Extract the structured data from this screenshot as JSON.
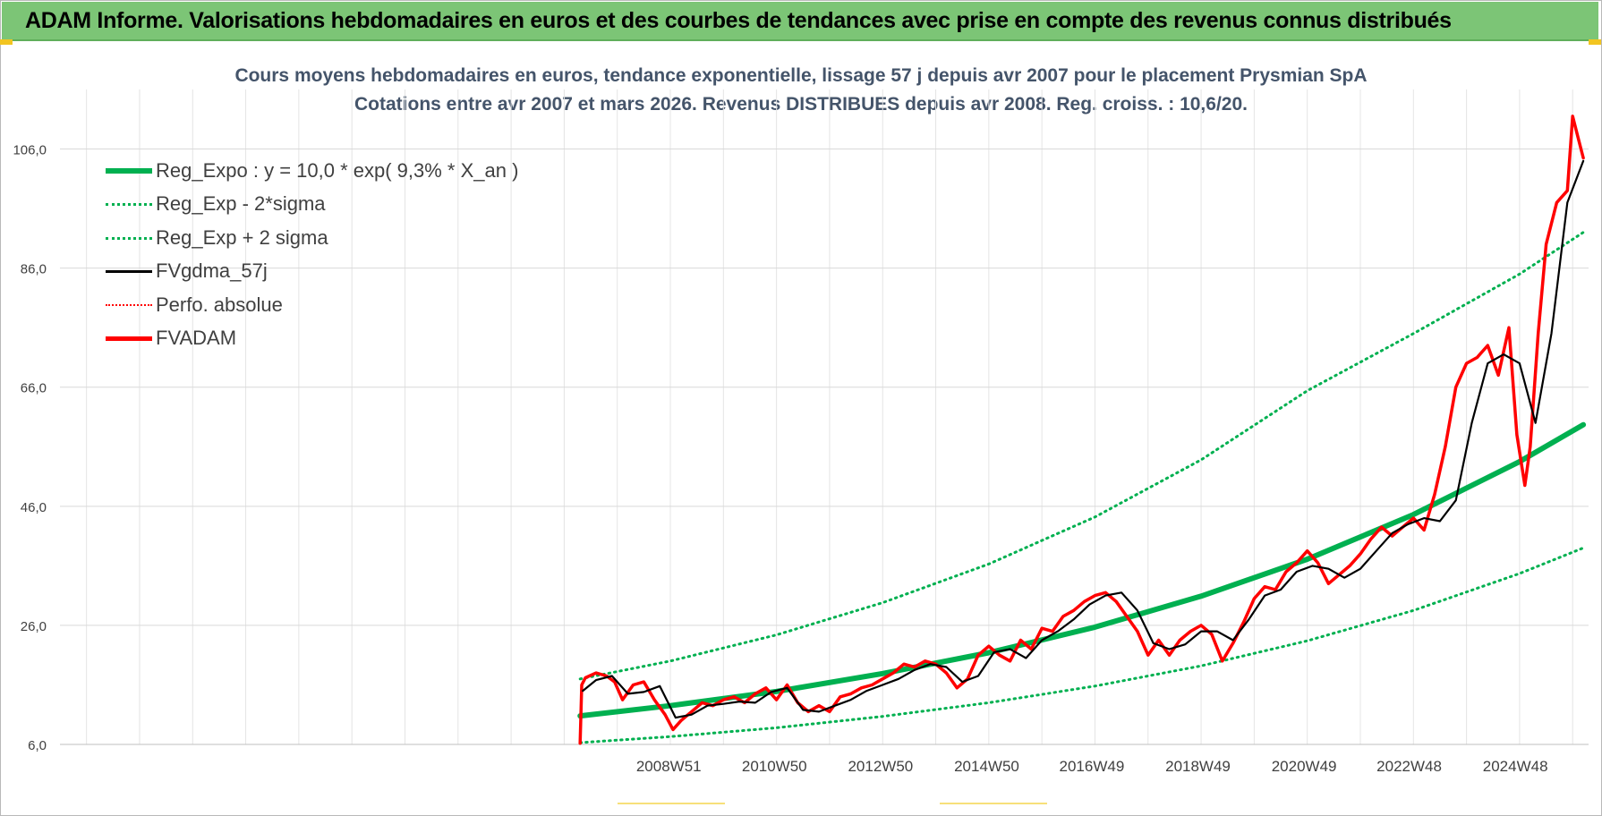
{
  "banner": {
    "title": "ADAM Informe. Valorisations hebdomadaires en euros et des courbes de tendances avec prise en compte des revenus connus distribués"
  },
  "chart_data": {
    "type": "line",
    "title": "Cours moyens hebdomadaires en euros, tendance exponentielle, lissage 57 j depuis avr 2007 pour le placement Prysmian SpA",
    "subtitle": "Cotations entre avr 2007 et mars 2026. Revenus DISTRIBUES depuis avr 2008. Reg. croiss. : 10,6/20.",
    "xlabel": "",
    "ylabel": "",
    "ylim": [
      6,
      116
    ],
    "yticks": [
      "6,0",
      "26,0",
      "46,0",
      "66,0",
      "86,0",
      "106,0"
    ],
    "ytick_values": [
      6,
      26,
      46,
      66,
      86,
      106
    ],
    "xlim": [
      1997.5,
      2026.3
    ],
    "xticks": [
      "2008W51",
      "2010W50",
      "2012W50",
      "2014W50",
      "2016W49",
      "2018W49",
      "2020W49",
      "2022W48",
      "2024W48"
    ],
    "xtick_positions": [
      2008.97,
      2010.96,
      2012.96,
      2014.96,
      2016.94,
      2018.94,
      2020.94,
      2022.92,
      2024.92
    ],
    "grid": true,
    "legend_position": "top-left",
    "series": [
      {
        "name": "Reg_Expo : y = 10,0 * exp( 9,3% *  X_an )",
        "style": "solid-thick",
        "color": "#00b050",
        "x": [
          2007.3,
          2009,
          2011,
          2013,
          2015,
          2017,
          2019,
          2021,
          2023,
          2025,
          2026.2
        ],
        "y": [
          10.8,
          12.5,
          14.9,
          17.9,
          21.4,
          25.7,
          30.9,
          37.1,
          44.6,
          53.5,
          59.7
        ]
      },
      {
        "name": "Reg_Exp - 2*sigma",
        "style": "dotted",
        "color": "#00b050",
        "x": [
          2007.3,
          2009,
          2011,
          2013,
          2015,
          2017,
          2019,
          2021,
          2023,
          2025,
          2026.2
        ],
        "y": [
          6.3,
          7.3,
          8.8,
          10.7,
          13.0,
          15.8,
          19.2,
          23.4,
          28.5,
          34.7,
          39.0
        ]
      },
      {
        "name": "Reg_Exp + 2 sigma",
        "style": "dotted",
        "color": "#00b050",
        "x": [
          2007.3,
          2009,
          2011,
          2013,
          2015,
          2017,
          2019,
          2021,
          2023,
          2025,
          2026.2
        ],
        "y": [
          17.0,
          20.0,
          24.4,
          29.8,
          36.3,
          44.2,
          53.8,
          65.4,
          75.0,
          85.0,
          92.0
        ]
      },
      {
        "name": "FVgdma_57j",
        "style": "solid",
        "color": "#000000",
        "x": [
          2007.35,
          2007.6,
          2007.9,
          2008.2,
          2008.5,
          2008.8,
          2009.1,
          2009.4,
          2009.7,
          2010.0,
          2010.3,
          2010.6,
          2010.9,
          2011.2,
          2011.5,
          2011.8,
          2012.1,
          2012.4,
          2012.7,
          2013.0,
          2013.3,
          2013.6,
          2013.9,
          2014.2,
          2014.5,
          2014.8,
          2015.1,
          2015.4,
          2015.7,
          2016.0,
          2016.3,
          2016.6,
          2016.9,
          2017.2,
          2017.5,
          2017.8,
          2018.1,
          2018.4,
          2018.7,
          2019.0,
          2019.3,
          2019.6,
          2019.9,
          2020.2,
          2020.5,
          2020.8,
          2021.1,
          2021.4,
          2021.7,
          2022.0,
          2022.3,
          2022.6,
          2022.9,
          2023.2,
          2023.5,
          2023.8,
          2024.1,
          2024.4,
          2024.7,
          2025.0,
          2025.3,
          2025.6,
          2025.9,
          2026.2
        ],
        "y": [
          15.0,
          16.8,
          17.5,
          14.5,
          14.8,
          15.8,
          10.5,
          11.0,
          12.5,
          12.8,
          13.2,
          13.0,
          14.8,
          15.5,
          11.8,
          11.5,
          12.5,
          13.5,
          15.0,
          16.0,
          17.0,
          18.5,
          19.5,
          19.0,
          16.5,
          17.5,
          21.5,
          22.0,
          20.5,
          23.5,
          25.0,
          27.0,
          29.5,
          31.0,
          31.5,
          28.5,
          23.0,
          22.0,
          22.8,
          25.0,
          25.0,
          23.5,
          27.0,
          31.0,
          32.0,
          35.0,
          36.0,
          35.5,
          34.0,
          35.5,
          38.5,
          41.5,
          43.0,
          44.0,
          43.5,
          47.0,
          60.0,
          70.0,
          71.5,
          70.0,
          60.0,
          75.0,
          97.0,
          104.0
        ]
      },
      {
        "name": "Perfo. absolue",
        "style": "dotted",
        "color": "#ff0000",
        "x": [],
        "y": []
      },
      {
        "name": "FVADAM",
        "style": "solid-thick",
        "color": "#ff0000",
        "x": [
          2007.3,
          2007.33,
          2007.4,
          2007.6,
          2007.8,
          2007.95,
          2008.1,
          2008.3,
          2008.5,
          2008.7,
          2008.9,
          2009.05,
          2009.2,
          2009.4,
          2009.6,
          2009.8,
          2010.0,
          2010.2,
          2010.4,
          2010.6,
          2010.8,
          2011.0,
          2011.2,
          2011.4,
          2011.6,
          2011.8,
          2012.0,
          2012.2,
          2012.4,
          2012.6,
          2012.8,
          2013.0,
          2013.2,
          2013.4,
          2013.6,
          2013.8,
          2014.0,
          2014.2,
          2014.4,
          2014.6,
          2014.8,
          2015.0,
          2015.2,
          2015.4,
          2015.6,
          2015.8,
          2016.0,
          2016.2,
          2016.4,
          2016.6,
          2016.8,
          2017.0,
          2017.2,
          2017.4,
          2017.6,
          2017.8,
          2018.0,
          2018.2,
          2018.4,
          2018.6,
          2018.8,
          2019.0,
          2019.2,
          2019.4,
          2019.6,
          2019.8,
          2020.0,
          2020.2,
          2020.4,
          2020.6,
          2020.8,
          2021.0,
          2021.2,
          2021.4,
          2021.6,
          2021.8,
          2022.0,
          2022.2,
          2022.4,
          2022.6,
          2022.8,
          2023.0,
          2023.2,
          2023.4,
          2023.6,
          2023.8,
          2024.0,
          2024.2,
          2024.4,
          2024.6,
          2024.8,
          2024.95,
          2025.1,
          2025.2,
          2025.35,
          2025.5,
          2025.7,
          2025.9,
          2026.0,
          2026.1,
          2026.2
        ],
        "y": [
          6.2,
          16.0,
          17.2,
          18.0,
          17.5,
          16.5,
          13.5,
          16.0,
          16.5,
          13.5,
          11.0,
          8.5,
          10.0,
          11.5,
          13.0,
          12.5,
          13.5,
          14.0,
          13.0,
          14.5,
          15.5,
          13.5,
          16.0,
          13.0,
          11.5,
          12.5,
          11.5,
          14.0,
          14.5,
          15.5,
          16.0,
          17.0,
          18.0,
          19.5,
          19.0,
          20.0,
          19.5,
          18.0,
          15.5,
          17.0,
          21.0,
          22.5,
          21.0,
          20.0,
          23.5,
          22.0,
          25.5,
          25.0,
          27.5,
          28.5,
          30.0,
          31.0,
          31.5,
          30.0,
          27.5,
          25.0,
          21.0,
          23.5,
          21.0,
          23.5,
          25.0,
          26.0,
          24.5,
          20.0,
          23.0,
          26.5,
          30.5,
          32.5,
          32.0,
          35.0,
          36.5,
          38.5,
          36.5,
          33.0,
          34.5,
          36.0,
          38.0,
          40.5,
          42.5,
          41.0,
          42.5,
          44.0,
          42.0,
          48.0,
          56.0,
          66.0,
          70.0,
          71.0,
          73.0,
          68.0,
          76.0,
          58.0,
          49.5,
          56.0,
          75.0,
          90.0,
          97.0,
          99.0,
          111.5,
          108.0,
          104.5
        ]
      }
    ]
  }
}
